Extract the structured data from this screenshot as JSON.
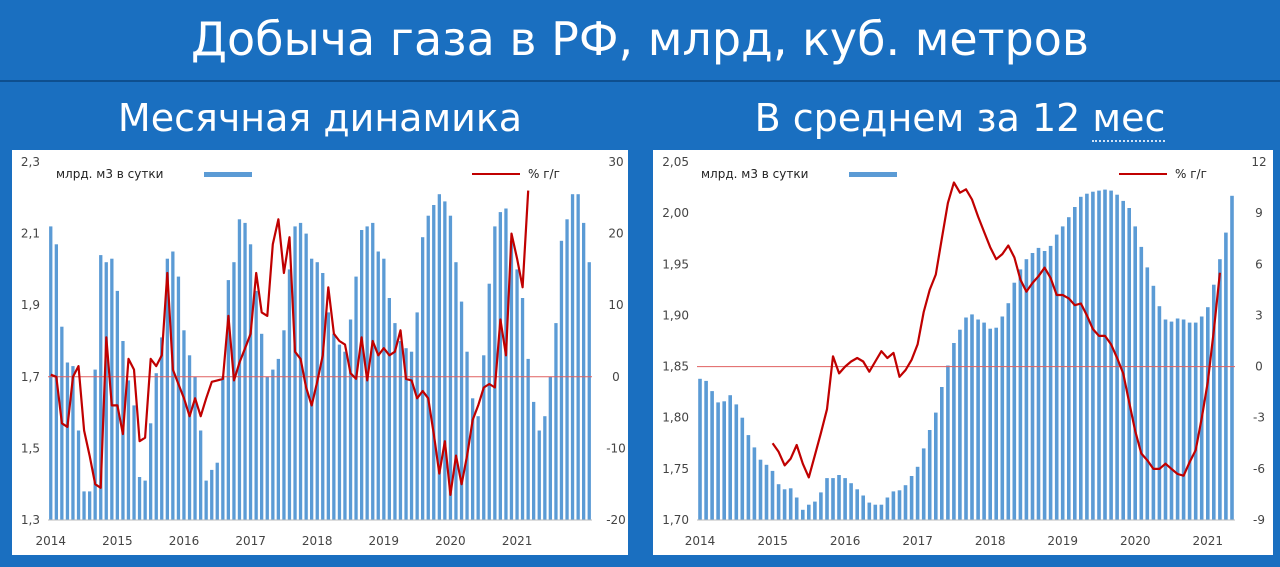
{
  "header": {
    "title": "Добыча газа в РФ, млрд, куб. метров",
    "left_subtitle": "Месячная динамика",
    "right_subtitle_a": "В среднем за 12 ",
    "right_subtitle_b": "мес"
  },
  "colors": {
    "bar": "#5b9bd5",
    "line": "#c00000",
    "zero_line": "#e06060",
    "background": "#1a6fc0"
  },
  "chart_data": [
    {
      "type": "bar",
      "name": "monthly",
      "legend_bar": "млрд. м3 в сутки",
      "legend_line": "% г/г",
      "ylim": [
        1.3,
        2.3
      ],
      "y_ticks": [
        "2,3",
        "2,1",
        "1,9",
        "1,7",
        "1,5",
        "1,3"
      ],
      "y2lim": [
        -20,
        30
      ],
      "y2_ticks": [
        "30",
        "20",
        "10",
        "0",
        "-10",
        "-20"
      ],
      "x_ticks": [
        "2014",
        "2015",
        "2016",
        "2017",
        "2018",
        "2019",
        "2020",
        "2021"
      ],
      "start": "2014-01",
      "bars": [
        2.12,
        2.07,
        1.84,
        1.74,
        1.73,
        1.55,
        1.38,
        1.38,
        1.72,
        2.04,
        2.02,
        2.03,
        1.94,
        1.8,
        1.69,
        1.62,
        1.42,
        1.41,
        1.57,
        1.71,
        1.81,
        2.03,
        2.05,
        1.98,
        1.83,
        1.76,
        1.7,
        1.55,
        1.41,
        1.44,
        1.46,
        1.7,
        1.97,
        2.02,
        2.14,
        2.13,
        2.07,
        1.94,
        1.82,
        1.7,
        1.72,
        1.75,
        1.83,
        2.0,
        2.12,
        2.13,
        2.1,
        2.03,
        2.02,
        1.99,
        1.88,
        1.82,
        1.79,
        1.77,
        1.86,
        1.98,
        2.11,
        2.12,
        2.13,
        2.05,
        2.03,
        1.92,
        1.85,
        1.8,
        1.78,
        1.77,
        1.88,
        2.09,
        2.15,
        2.18,
        2.21,
        2.19,
        2.15,
        2.02,
        1.91,
        1.77,
        1.64,
        1.59,
        1.76,
        1.96,
        2.12,
        2.16,
        2.17,
        2.08,
        2.0,
        1.92,
        1.75,
        1.63,
        1.55,
        1.59,
        1.7,
        1.85,
        2.08,
        2.14,
        2.21,
        2.21,
        2.13,
        2.02
      ],
      "line": [
        0.3,
        0.0,
        -6.5,
        -7.0,
        0.0,
        1.5,
        -7.5,
        -11.0,
        -15.0,
        -15.5,
        5.5,
        -4.0,
        -4.0,
        -8.0,
        2.5,
        1.0,
        -9.0,
        -8.5,
        2.5,
        1.5,
        3.0,
        14.5,
        1.0,
        -1.0,
        -3.0,
        -5.5,
        -3.0,
        -5.5,
        -3.0,
        -0.7,
        -0.5,
        -0.3,
        8.5,
        -0.5,
        2.0,
        4.0,
        6.0,
        14.5,
        9.0,
        8.5,
        18.5,
        22.0,
        14.5,
        19.5,
        3.5,
        2.5,
        -1.5,
        -4.0,
        -0.7,
        3.0,
        12.5,
        6.0,
        5.0,
        4.5,
        0.5,
        -0.3,
        5.5,
        -0.5,
        5.0,
        3.0,
        4.0,
        3.0,
        3.5,
        6.5,
        -0.3,
        -0.5,
        -3.0,
        -2.0,
        -3.0,
        -8.0,
        -13.5,
        -9.0,
        -16.5,
        -11.0,
        -15.0,
        -11.0,
        -6.0,
        -4.0,
        -1.5,
        -1.0,
        -1.5,
        8.0,
        3.0,
        20.0,
        16.5,
        12.5,
        26.0
      ]
    },
    {
      "type": "bar",
      "name": "rolling-12m",
      "legend_bar": "млрд. м3 в сутки",
      "legend_line": "% г/г",
      "ylim": [
        1.7,
        2.05
      ],
      "y_ticks": [
        "2,05",
        "2,00",
        "1,95",
        "1,90",
        "1,85",
        "1,80",
        "1,75",
        "1,70"
      ],
      "y2lim": [
        -9,
        12
      ],
      "y2_ticks": [
        "12",
        "9",
        "6",
        "3",
        "0",
        "-3",
        "-6",
        "-9"
      ],
      "x_ticks": [
        "2014",
        "2015",
        "2016",
        "2017",
        "2018",
        "2019",
        "2020",
        "2021"
      ],
      "start": "2014-01",
      "bars": [
        1.838,
        1.836,
        1.826,
        1.815,
        1.816,
        1.822,
        1.813,
        1.8,
        1.783,
        1.771,
        1.759,
        1.754,
        1.748,
        1.735,
        1.73,
        1.731,
        1.722,
        1.71,
        1.715,
        1.718,
        1.727,
        1.741,
        1.741,
        1.744,
        1.741,
        1.736,
        1.73,
        1.724,
        1.717,
        1.715,
        1.715,
        1.722,
        1.728,
        1.729,
        1.734,
        1.743,
        1.752,
        1.77,
        1.788,
        1.805,
        1.83,
        1.851,
        1.873,
        1.886,
        1.898,
        1.901,
        1.896,
        1.893,
        1.887,
        1.888,
        1.899,
        1.912,
        1.932,
        1.945,
        1.955,
        1.961,
        1.966,
        1.963,
        1.968,
        1.979,
        1.987,
        1.996,
        2.006,
        2.016,
        2.019,
        2.021,
        2.022,
        2.023,
        2.022,
        2.018,
        2.012,
        2.005,
        1.987,
        1.967,
        1.947,
        1.929,
        1.909,
        1.896,
        1.894,
        1.897,
        1.896,
        1.893,
        1.893,
        1.899,
        1.908,
        1.93,
        1.955,
        1.981,
        2.017
      ],
      "line_start": "2015-01",
      "line": [
        -4.5,
        -5.0,
        -5.8,
        -5.4,
        -4.6,
        -5.7,
        -6.5,
        -5.2,
        -3.9,
        -2.5,
        0.6,
        -0.4,
        0.0,
        0.3,
        0.5,
        0.3,
        -0.3,
        0.3,
        0.9,
        0.5,
        0.8,
        -0.6,
        -0.2,
        0.4,
        1.3,
        3.2,
        4.5,
        5.4,
        7.5,
        9.6,
        10.8,
        10.2,
        10.4,
        9.8,
        8.8,
        7.9,
        7.0,
        6.3,
        6.6,
        7.1,
        6.4,
        5.1,
        4.4,
        4.9,
        5.3,
        5.8,
        5.2,
        4.2,
        4.2,
        4.0,
        3.6,
        3.7,
        3.0,
        2.2,
        1.8,
        1.8,
        1.3,
        0.5,
        -0.4,
        -2.1,
        -3.8,
        -5.1,
        -5.5,
        -6.0,
        -6.0,
        -5.7,
        -6.0,
        -6.3,
        -6.4,
        -5.6,
        -4.9,
        -3.0,
        -0.9,
        2.1,
        5.5
      ]
    }
  ]
}
